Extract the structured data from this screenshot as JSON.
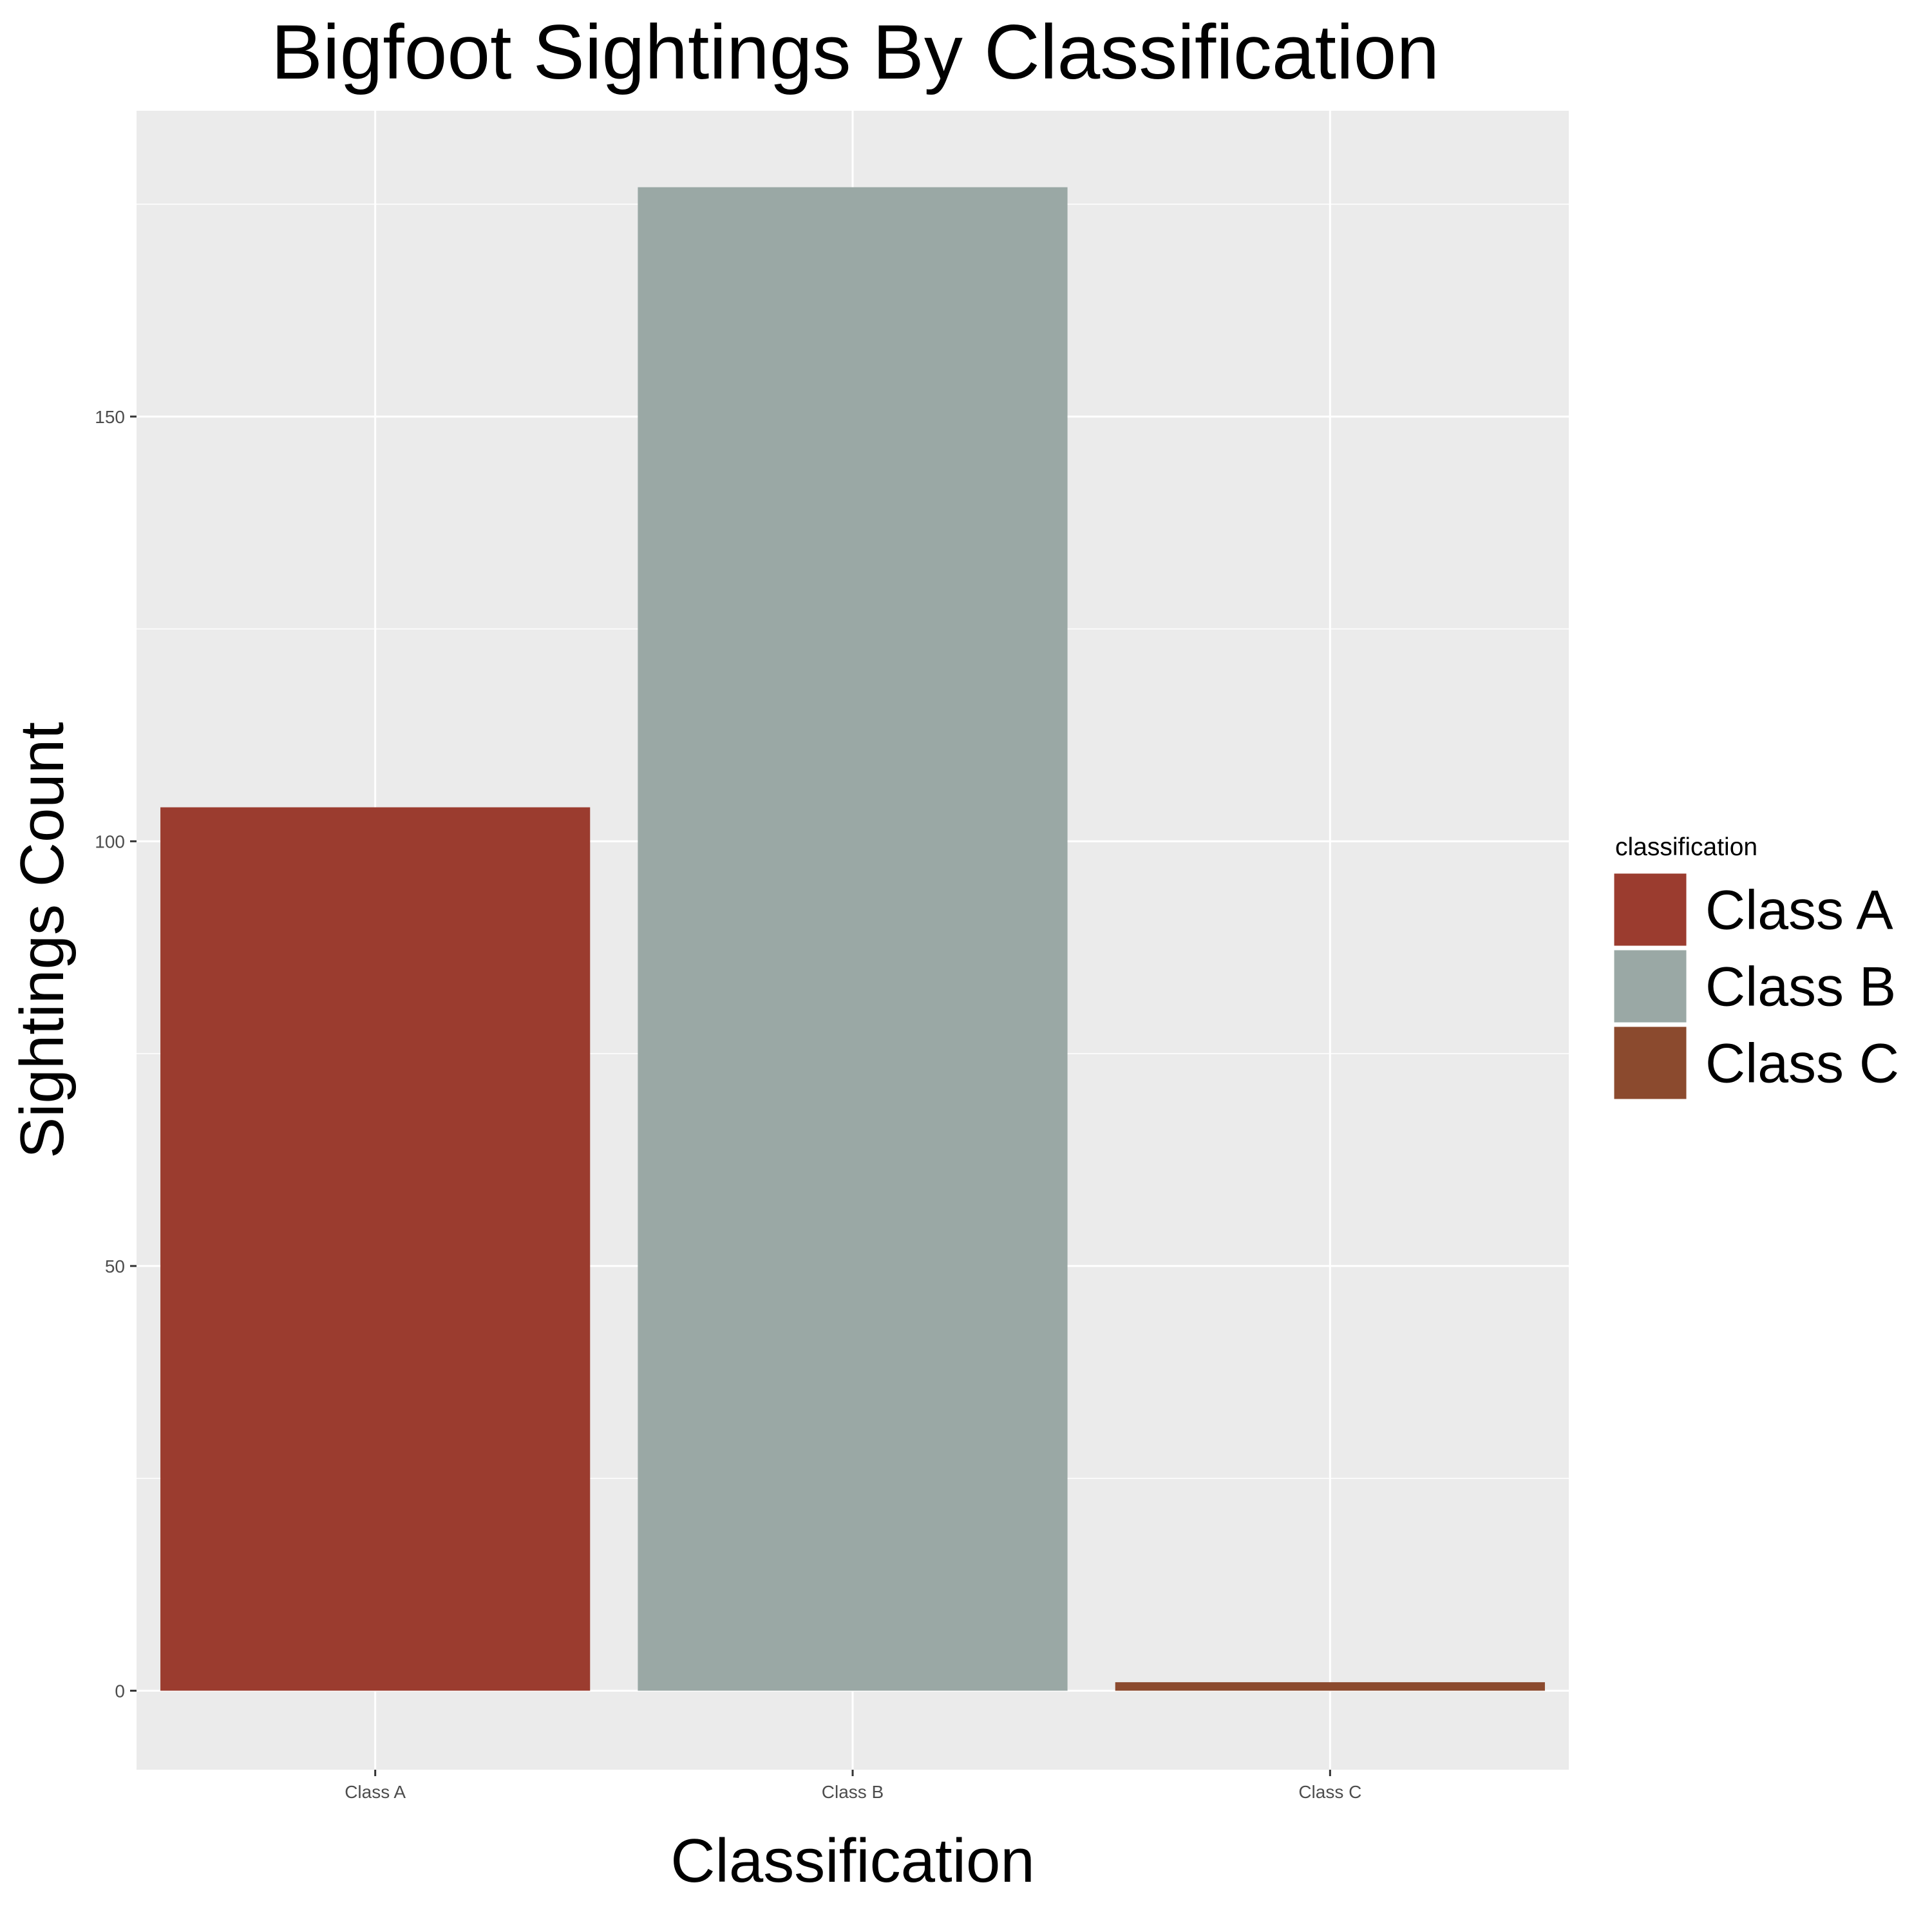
{
  "chart_data": {
    "type": "bar",
    "title": "Bigfoot Sightings By Classification",
    "xlabel": "Classification",
    "ylabel": "Sightings Count",
    "categories": [
      "Class A",
      "Class B",
      "Class C"
    ],
    "values": [
      104,
      177,
      1
    ],
    "colors": [
      "#9b3c2f",
      "#9aa8a5",
      "#8b4a2e"
    ],
    "ylim": [
      -9.3,
      186
    ],
    "y_ticks": [
      0,
      50,
      100,
      150
    ],
    "grid": true,
    "panel_background": "#ebebeb",
    "legend": {
      "title": "classification",
      "position": "right",
      "entries": [
        "Class A",
        "Class B",
        "Class C"
      ]
    }
  }
}
